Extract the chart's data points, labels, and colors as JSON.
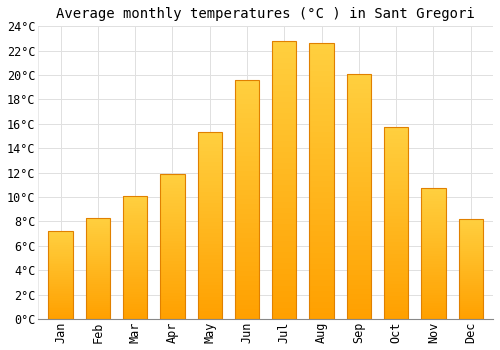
{
  "title": "Average monthly temperatures (°C ) in Sant Gregori",
  "months": [
    "Jan",
    "Feb",
    "Mar",
    "Apr",
    "May",
    "Jun",
    "Jul",
    "Aug",
    "Sep",
    "Oct",
    "Nov",
    "Dec"
  ],
  "values": [
    7.2,
    8.3,
    10.1,
    11.9,
    15.3,
    19.6,
    22.8,
    22.6,
    20.1,
    15.7,
    10.7,
    8.2
  ],
  "bar_color_top": "#FFD040",
  "bar_color_bottom": "#FFA000",
  "bar_edge_color": "#E08000",
  "background_color": "#FFFFFF",
  "grid_color": "#E0E0E0",
  "ylim": [
    0,
    24
  ],
  "yticks": [
    0,
    2,
    4,
    6,
    8,
    10,
    12,
    14,
    16,
    18,
    20,
    22,
    24
  ],
  "title_fontsize": 10,
  "tick_fontsize": 8.5
}
